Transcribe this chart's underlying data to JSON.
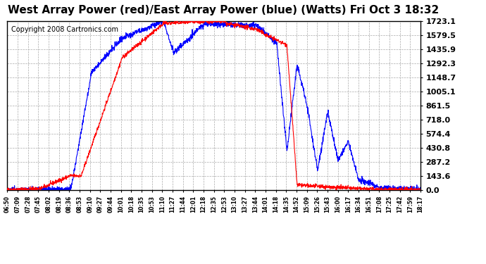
{
  "title": "West Array Power (red)/East Array Power (blue) (Watts) Fri Oct 3 18:32",
  "copyright": "Copyright 2008 Cartronics.com",
  "background_color": "#ffffff",
  "plot_bg_color": "#ffffff",
  "grid_color": "#aaaaaa",
  "x_labels": [
    "06:50",
    "07:09",
    "07:28",
    "07:45",
    "08:02",
    "08:19",
    "08:36",
    "08:53",
    "09:10",
    "09:27",
    "09:44",
    "10:01",
    "10:18",
    "10:35",
    "10:53",
    "11:10",
    "11:27",
    "11:44",
    "12:01",
    "12:18",
    "12:35",
    "12:53",
    "13:10",
    "13:27",
    "13:44",
    "14:01",
    "14:18",
    "14:35",
    "14:52",
    "15:09",
    "15:26",
    "15:43",
    "16:00",
    "16:17",
    "16:34",
    "16:51",
    "17:08",
    "17:25",
    "17:42",
    "17:59",
    "18:17"
  ],
  "y_ticks": [
    0.0,
    143.6,
    287.2,
    430.8,
    574.4,
    718.0,
    861.5,
    1005.1,
    1148.7,
    1292.3,
    1435.9,
    1579.5,
    1723.1
  ],
  "y_max": 1723.1,
  "y_min": 0.0,
  "red_color": "#ff0000",
  "blue_color": "#0000ff",
  "title_fontsize": 11,
  "copyright_fontsize": 7
}
